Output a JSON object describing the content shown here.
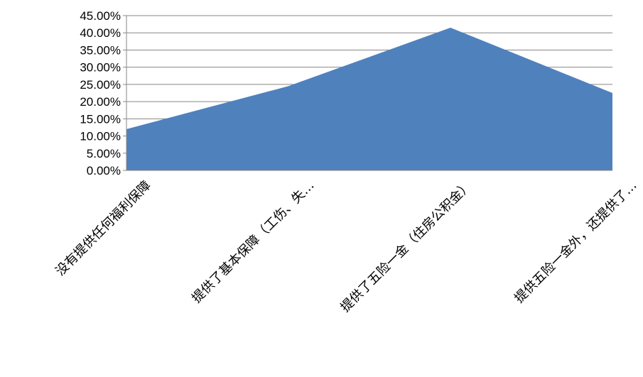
{
  "chart_data": {
    "type": "area",
    "categories": [
      "没有提供任何福利保障",
      "提供了基本保障（工伤、失…",
      "提供了五险一金（住房公积金）",
      "提供五险一金外，还提供了…"
    ],
    "series": [
      {
        "values": [
          0.12,
          0.245,
          0.415,
          0.225
        ]
      }
    ],
    "ylim": [
      0,
      0.45
    ],
    "yticks": [
      "0.00%",
      "5.00%",
      "10.00%",
      "15.00%",
      "20.00%",
      "25.00%",
      "30.00%",
      "35.00%",
      "40.00%",
      "45.00%"
    ],
    "grid": true,
    "legend": "none",
    "colors": {
      "area": "#4F81BD",
      "grid": "#878787"
    }
  }
}
